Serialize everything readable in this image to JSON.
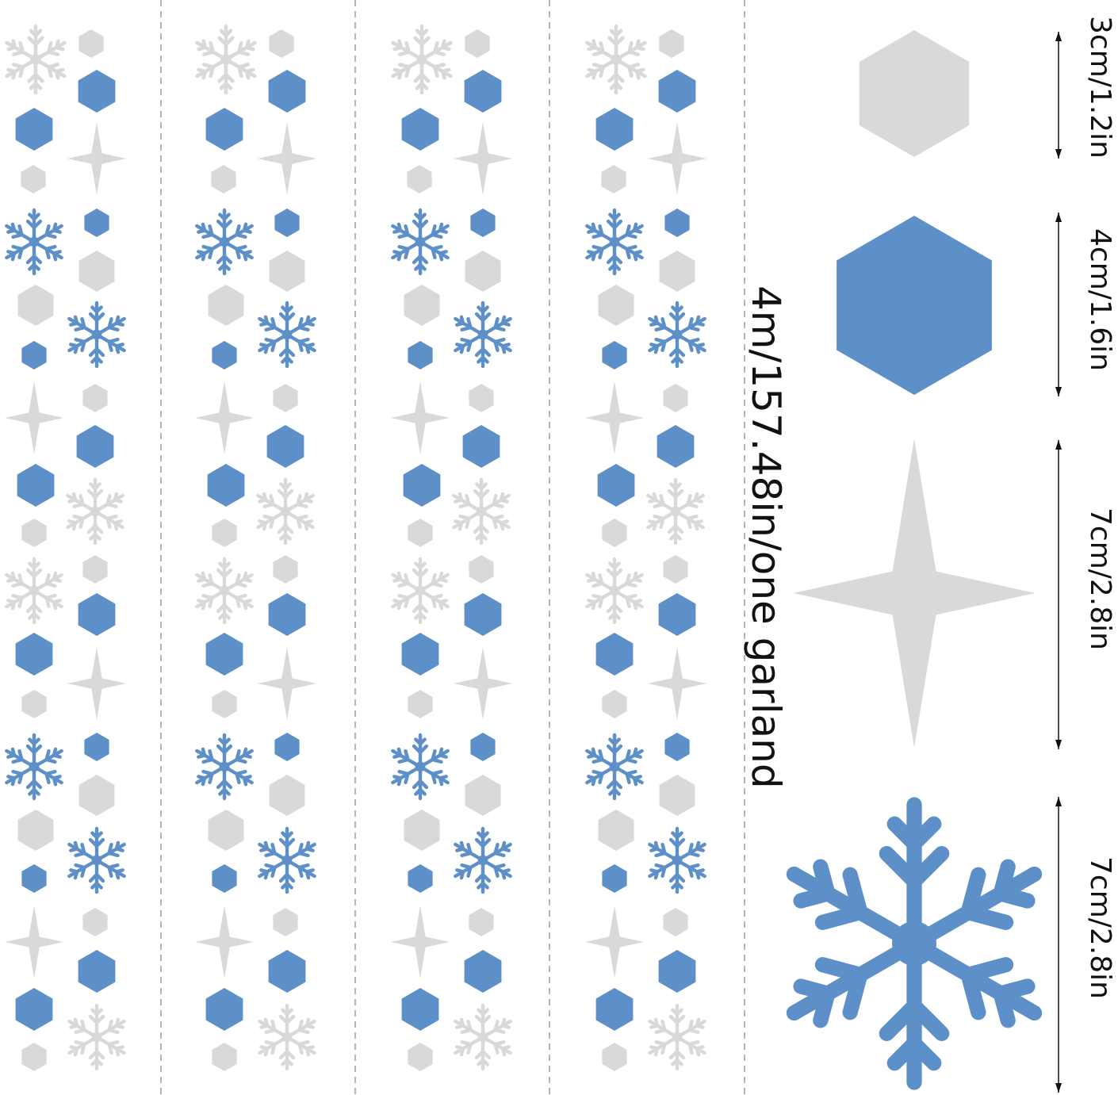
{
  "garland_length_label": "4m/157.48in/one garland",
  "size_labels": [
    {
      "label": "3cm/1.2in",
      "shape": "silver hexagon"
    },
    {
      "label": "4cm/1.6in",
      "shape": "blue hexagon"
    },
    {
      "label": "7cm/2.8in",
      "shape": "silver four-point star"
    },
    {
      "label": "7cm/2.8in",
      "shape": "blue snowflake"
    }
  ],
  "garland_count": 4,
  "colors": {
    "blue": "#5d8fc8",
    "silver": "#d9d9d9",
    "divider": "#b5b5b5",
    "text": "#111111"
  }
}
